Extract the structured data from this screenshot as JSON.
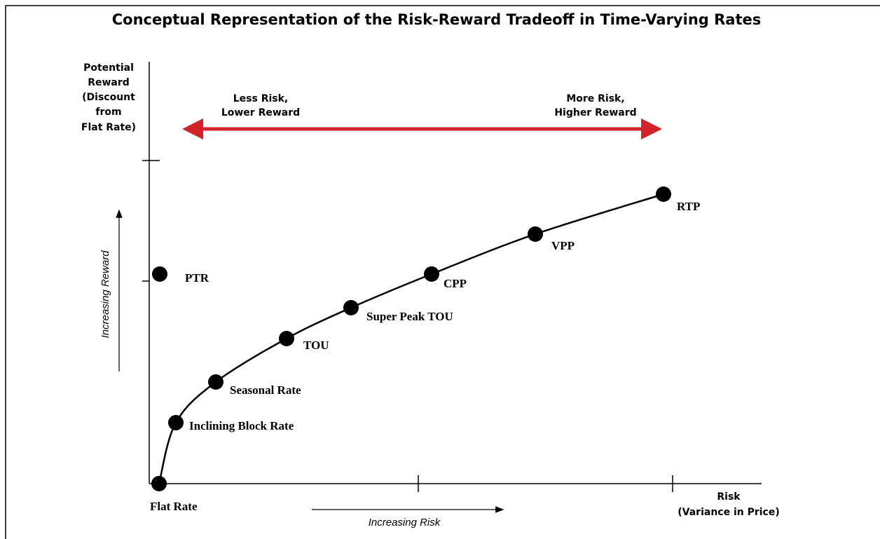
{
  "title": "Conceptual Representation of the Risk-Reward Tradeoff in Time-Varying Rates",
  "y_axis_label": [
    "Potential",
    "Reward",
    "(Discount",
    "from",
    "Flat Rate)"
  ],
  "x_axis_label": [
    "Risk",
    "(Variance in Price)"
  ],
  "left_annotation": [
    "Less Risk,",
    "Lower Reward"
  ],
  "right_annotation": [
    "More Risk,",
    "Higher Reward"
  ],
  "increasing_reward": "Increasing Reward",
  "increasing_risk": "Increasing Risk",
  "points": [
    {
      "label": "Flat Rate"
    },
    {
      "label": "Inclining Block Rate"
    },
    {
      "label": "Seasonal Rate"
    },
    {
      "label": "TOU"
    },
    {
      "label": "Super Peak TOU"
    },
    {
      "label": "CPP"
    },
    {
      "label": "VPP"
    },
    {
      "label": "RTP"
    },
    {
      "label": "PTR"
    }
  ]
}
